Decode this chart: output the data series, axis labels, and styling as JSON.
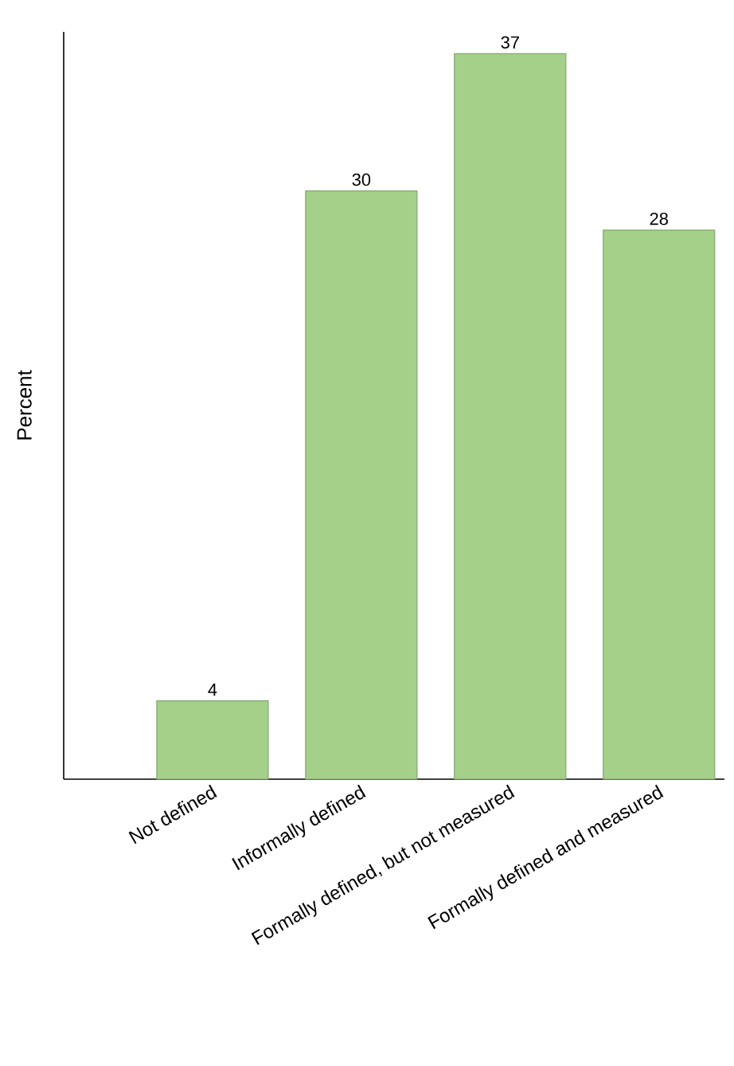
{
  "chart_data": {
    "type": "bar",
    "ylabel": "Percent",
    "categories": [
      "Not defined",
      "Informally defined",
      "Formally defined, but not measured",
      "Formally defined and measured"
    ],
    "values": [
      4,
      30,
      37,
      28
    ],
    "color": "#a4d08a",
    "data_labels": true
  }
}
